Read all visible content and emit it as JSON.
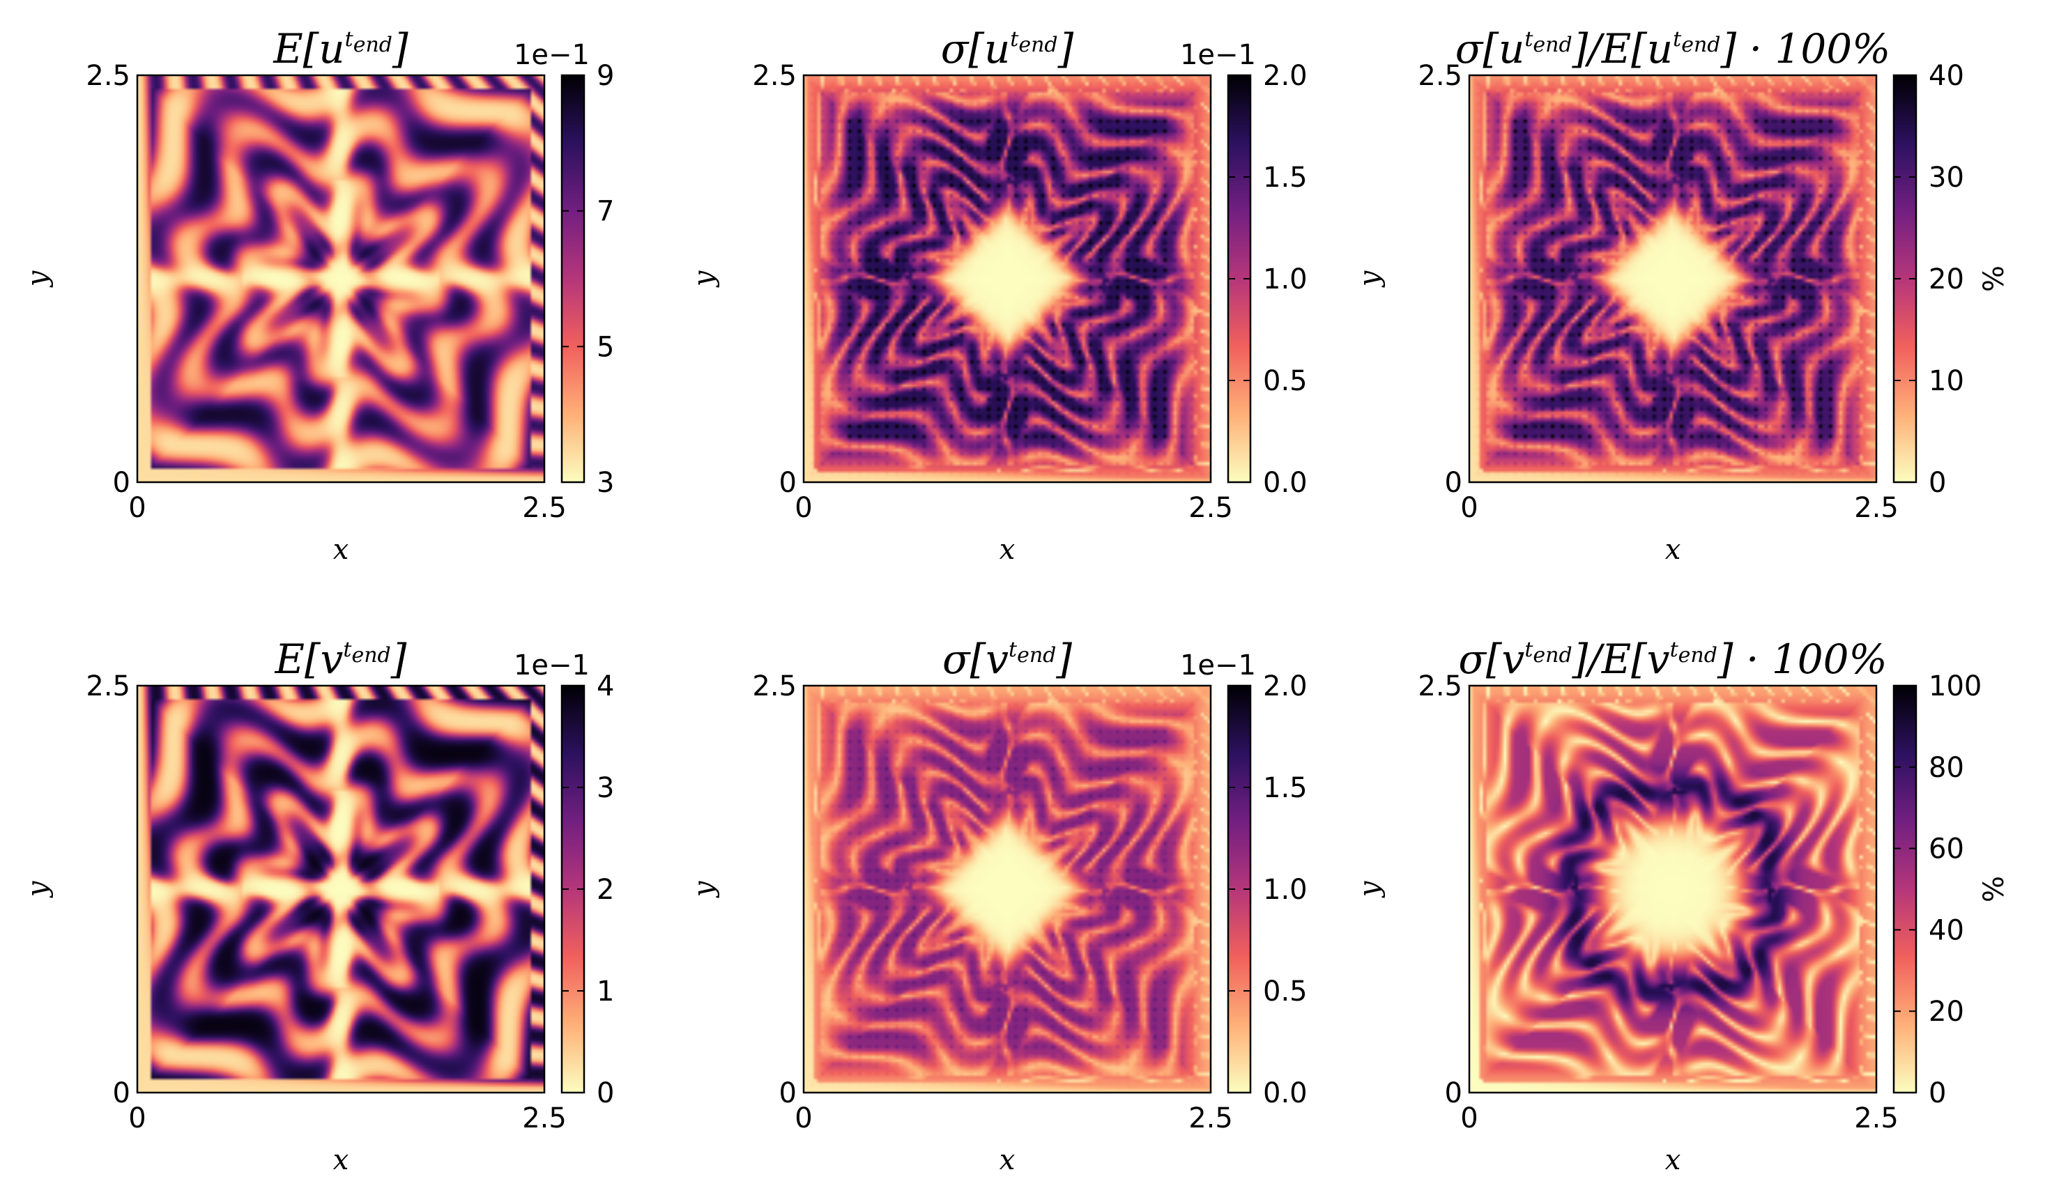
{
  "chart_data": [
    {
      "type": "heatmap",
      "title": {
        "a": "E[u",
        "sup": "t",
        "sub": "end",
        "b": "]"
      },
      "pattern": "mean",
      "xlabel": "x",
      "ylabel": "y",
      "xlim": [
        0,
        2.5
      ],
      "ylim": [
        0,
        2.5
      ],
      "x_ticks": [
        "0",
        "2.5"
      ],
      "y_ticks": [
        "0",
        "2.5"
      ],
      "colorbar": {
        "min": 3,
        "max": 9,
        "ticks": [
          "3",
          "5",
          "7",
          "9"
        ],
        "tick_values": [
          3,
          5,
          7,
          9
        ],
        "multiplier": "1e−1",
        "label": ""
      }
    },
    {
      "type": "heatmap",
      "title": {
        "a": "σ[u",
        "sup": "t",
        "sub": "end",
        "b": "]"
      },
      "pattern": "std",
      "xlabel": "x",
      "ylabel": "y",
      "xlim": [
        0,
        2.5
      ],
      "ylim": [
        0,
        2.5
      ],
      "x_ticks": [
        "0",
        "2.5"
      ],
      "y_ticks": [
        "0",
        "2.5"
      ],
      "colorbar": {
        "min": 0,
        "max": 2.0,
        "ticks": [
          "0.0",
          "0.5",
          "1.0",
          "1.5",
          "2.0"
        ],
        "tick_values": [
          0,
          0.5,
          1.0,
          1.5,
          2.0
        ],
        "multiplier": "1e−1",
        "label": ""
      }
    },
    {
      "type": "heatmap",
      "title": {
        "a": "σ[u",
        "sup": "t",
        "sub": "end",
        "b": "]/E[u",
        "sup2": "t",
        "sub2": "end",
        "c": "] · 100%"
      },
      "pattern": "ratio",
      "xlabel": "x",
      "ylabel": "y",
      "xlim": [
        0,
        2.5
      ],
      "ylim": [
        0,
        2.5
      ],
      "x_ticks": [
        "0",
        "2.5"
      ],
      "y_ticks": [
        "0",
        "2.5"
      ],
      "colorbar": {
        "min": 0,
        "max": 40,
        "ticks": [
          "0",
          "10",
          "20",
          "30",
          "40"
        ],
        "tick_values": [
          0,
          10,
          20,
          30,
          40
        ],
        "multiplier": "",
        "label": "%"
      }
    },
    {
      "type": "heatmap",
      "title": {
        "a": "E[v",
        "sup": "t",
        "sub": "end",
        "b": "]"
      },
      "pattern": "mean_v",
      "xlabel": "x",
      "ylabel": "y",
      "xlim": [
        0,
        2.5
      ],
      "ylim": [
        0,
        2.5
      ],
      "x_ticks": [
        "0",
        "2.5"
      ],
      "y_ticks": [
        "0",
        "2.5"
      ],
      "colorbar": {
        "min": 0,
        "max": 4,
        "ticks": [
          "0",
          "1",
          "2",
          "3",
          "4"
        ],
        "tick_values": [
          0,
          1,
          2,
          3,
          4
        ],
        "multiplier": "1e−1",
        "label": ""
      }
    },
    {
      "type": "heatmap",
      "title": {
        "a": "σ[v",
        "sup": "t",
        "sub": "end",
        "b": "]"
      },
      "pattern": "std_v",
      "xlabel": "x",
      "ylabel": "y",
      "xlim": [
        0,
        2.5
      ],
      "ylim": [
        0,
        2.5
      ],
      "x_ticks": [
        "0",
        "2.5"
      ],
      "y_ticks": [
        "0",
        "2.5"
      ],
      "colorbar": {
        "min": 0,
        "max": 2.0,
        "ticks": [
          "0.0",
          "0.5",
          "1.0",
          "1.5",
          "2.0"
        ],
        "tick_values": [
          0,
          0.5,
          1.0,
          1.5,
          2.0
        ],
        "multiplier": "1e−1",
        "label": ""
      }
    },
    {
      "type": "heatmap",
      "title": {
        "a": "σ[v",
        "sup": "t",
        "sub": "end",
        "b": "]/E[v",
        "sup2": "t",
        "sub2": "end",
        "c": "] · 100%"
      },
      "pattern": "ratio_v",
      "xlabel": "x",
      "ylabel": "y",
      "xlim": [
        0,
        2.5
      ],
      "ylim": [
        0,
        2.5
      ],
      "x_ticks": [
        "0",
        "2.5"
      ],
      "y_ticks": [
        "0",
        "2.5"
      ],
      "colorbar": {
        "min": 0,
        "max": 100,
        "ticks": [
          "0",
          "20",
          "40",
          "60",
          "80",
          "100"
        ],
        "tick_values": [
          0,
          20,
          40,
          60,
          80,
          100
        ],
        "multiplier": "",
        "label": "%"
      }
    }
  ],
  "colormap": "magma_r",
  "colormap_stops": [
    "#fcfdbf",
    "#feb078",
    "#f1605d",
    "#b5367a",
    "#721f81",
    "#2c115f",
    "#000004"
  ]
}
